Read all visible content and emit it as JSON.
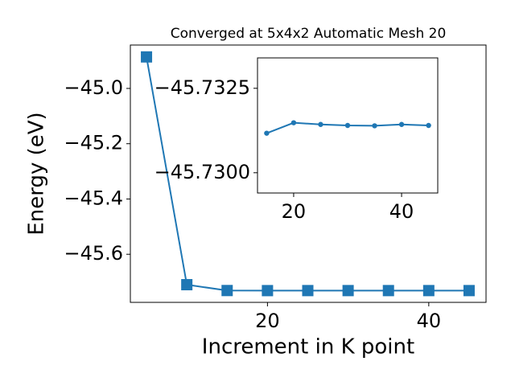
{
  "chart_data": [
    {
      "type": "line",
      "title": "Converged at 5x4x2 Automatic Mesh 20",
      "xlabel": "Increment in K point",
      "ylabel": "Energy (eV)",
      "x": [
        5,
        10,
        15,
        20,
        25,
        30,
        35,
        40,
        45
      ],
      "series": [
        {
          "name": "Energy",
          "color": "#1f77b4",
          "marker": "square",
          "values": [
            -44.886,
            -45.71,
            -45.7312,
            -45.7315,
            -45.7314,
            -45.7314,
            -45.7314,
            -45.7314,
            -45.7314
          ]
        }
      ],
      "xlim": [
        3.0,
        47.1
      ],
      "ylim": [
        -45.774,
        -44.843
      ],
      "xticks": [
        20,
        40
      ],
      "yticks": [
        {
          "value": -45.0,
          "label": "−45.0"
        },
        {
          "value": -45.2,
          "label": "−45.2"
        },
        {
          "value": -45.4,
          "label": "−45.4"
        },
        {
          "value": -45.6,
          "label": "−45.6"
        }
      ]
    },
    {
      "type": "line",
      "x": [
        15,
        20,
        25,
        30,
        35,
        40,
        45
      ],
      "series": [
        {
          "name": "Energy",
          "color": "#1f77b4",
          "marker": "circle",
          "values": [
            -45.73117,
            -45.73148,
            -45.73143,
            -45.7314,
            -45.73139,
            -45.73143,
            -45.7314
          ]
        }
      ],
      "xlim": [
        13.3,
        46.7
      ],
      "ylim": [
        -45.7294,
        -45.7334
      ],
      "xticks": [
        20,
        40
      ],
      "yticks": [
        {
          "value": -45.7325,
          "label": "−45.7325"
        },
        {
          "value": -45.73,
          "label": "−45.7300"
        }
      ]
    }
  ]
}
